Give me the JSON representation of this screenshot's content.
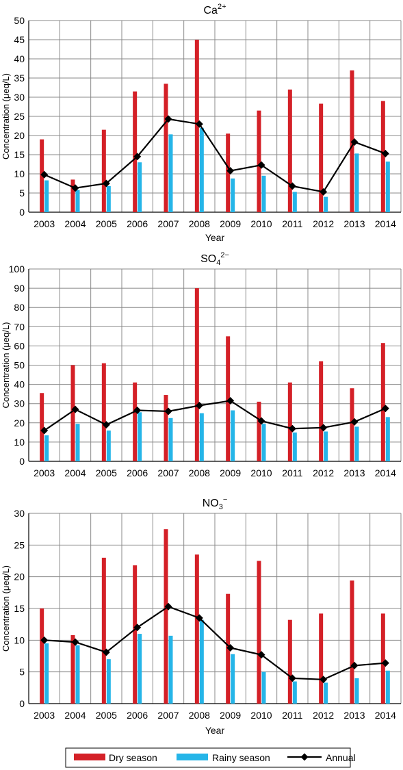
{
  "chart_data": [
    {
      "type": "bar",
      "title_main": "Ca",
      "title_sup": "2+",
      "title_sub": "",
      "xlabel": "Year",
      "ylabel": "Concentration (μeq/L)",
      "ylim": [
        0,
        50
      ],
      "ystep": 5,
      "grid": true,
      "categories": [
        "2003",
        "2004",
        "2005",
        "2006",
        "2007",
        "2008",
        "2009",
        "2010",
        "2011",
        "2012",
        "2013",
        "2014"
      ],
      "series": [
        {
          "name": "Dry season",
          "kind": "bar",
          "values": [
            19.0,
            8.5,
            21.5,
            31.5,
            33.5,
            45.0,
            20.5,
            26.5,
            32.0,
            28.3,
            37.0,
            29.0
          ]
        },
        {
          "name": "Rainy season",
          "kind": "bar",
          "values": [
            8.3,
            5.8,
            6.8,
            13.0,
            20.3,
            22.0,
            8.8,
            9.5,
            5.3,
            4.0,
            15.3,
            13.2
          ]
        },
        {
          "name": "Annual",
          "kind": "line",
          "values": [
            9.8,
            6.3,
            7.5,
            14.5,
            24.3,
            23.0,
            10.8,
            12.3,
            6.8,
            5.3,
            18.3,
            15.3
          ]
        }
      ]
    },
    {
      "type": "bar",
      "title_main": "SO",
      "title_sup": "2−",
      "title_sub": "4",
      "xlabel": "",
      "ylabel": "Concentration (μeq/L)",
      "ylim": [
        0,
        100
      ],
      "ystep": 10,
      "grid": true,
      "categories": [
        "2003",
        "2004",
        "2005",
        "2006",
        "2007",
        "2008",
        "2009",
        "2010",
        "2011",
        "2012",
        "2013",
        "2014"
      ],
      "series": [
        {
          "name": "Dry season",
          "kind": "bar",
          "values": [
            35.5,
            50.0,
            51.0,
            41.0,
            34.5,
            90.0,
            65.0,
            31.0,
            41.0,
            52.0,
            38.0,
            61.5
          ]
        },
        {
          "name": "Rainy season",
          "kind": "bar",
          "values": [
            13.5,
            19.5,
            16.0,
            25.5,
            22.5,
            25.0,
            26.5,
            19.5,
            15.0,
            15.5,
            18.0,
            23.0
          ]
        },
        {
          "name": "Annual",
          "kind": "line",
          "values": [
            16.0,
            27.0,
            19.0,
            26.5,
            26.0,
            29.0,
            31.5,
            21.0,
            17.0,
            17.5,
            20.5,
            27.5
          ]
        }
      ]
    },
    {
      "type": "bar",
      "title_main": "NO",
      "title_sup": "−",
      "title_sub": "3",
      "xlabel": "Year",
      "ylabel": "Concentration (μeq/L)",
      "ylim": [
        0,
        30
      ],
      "ystep": 5,
      "grid": true,
      "categories": [
        "2003",
        "2004",
        "2005",
        "2006",
        "2007",
        "2008",
        "2009",
        "2010",
        "2011",
        "2012",
        "2013",
        "2014"
      ],
      "series": [
        {
          "name": "Dry season",
          "kind": "bar",
          "values": [
            15.0,
            10.8,
            23.0,
            21.8,
            27.5,
            23.5,
            17.3,
            22.5,
            13.2,
            14.2,
            19.4,
            14.2
          ]
        },
        {
          "name": "Rainy season",
          "kind": "bar",
          "values": [
            9.5,
            9.2,
            7.0,
            11.0,
            10.7,
            13.2,
            7.8,
            5.0,
            3.5,
            3.3,
            4.0,
            5.2
          ]
        },
        {
          "name": "Annual",
          "kind": "line",
          "values": [
            10.0,
            9.7,
            8.1,
            12.0,
            15.3,
            13.5,
            8.8,
            7.7,
            4.0,
            3.8,
            6.0,
            6.4
          ]
        }
      ]
    }
  ],
  "legend": {
    "placement": "bottom",
    "items": [
      {
        "label": "Dry season",
        "kind": "bar",
        "color": "#d42027"
      },
      {
        "label": "Rainy season",
        "kind": "bar",
        "color": "#25b5e8"
      },
      {
        "label": "Annual",
        "kind": "line",
        "color": "#000000"
      }
    ]
  },
  "colors": {
    "dry": "#d42027",
    "rainy": "#25b5e8",
    "annual": "#000000",
    "grid": "#888888"
  }
}
